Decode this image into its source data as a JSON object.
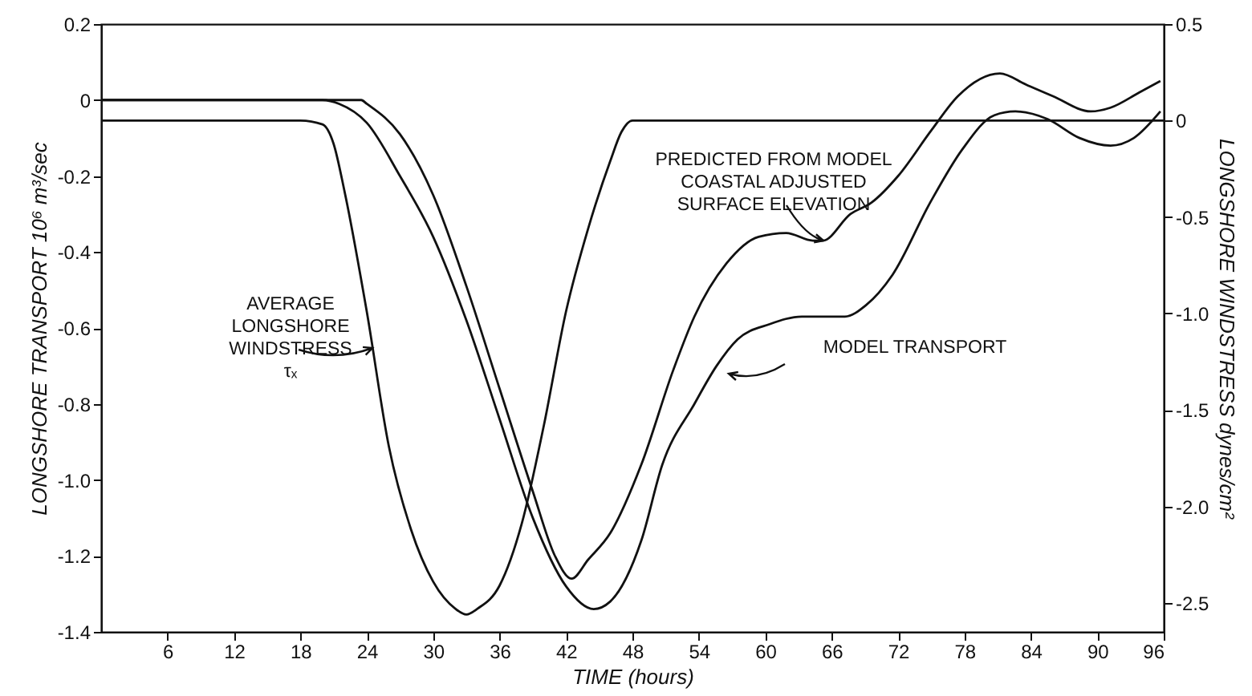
{
  "chart_data": {
    "type": "line",
    "xlabel": "TIME  (hours)",
    "ylabel": "LONGSHORE TRANSPORT  10⁶ m³/sec",
    "y2label": "LONGSHORE WINDSTRESS  dynes/cm²",
    "xlim": [
      0,
      96
    ],
    "xticks": [
      6,
      12,
      18,
      24,
      30,
      36,
      42,
      48,
      54,
      60,
      66,
      72,
      78,
      84,
      90,
      96
    ],
    "ylim": [
      -1.4,
      0.2
    ],
    "yticks": [
      0.2,
      0,
      -0.2,
      -0.4,
      -0.6,
      -0.8,
      {
        "value": -1,
        "label": "-1.0"
      },
      -1.2,
      -1.4
    ],
    "y2lim": [
      -2.65,
      0.5
    ],
    "y2ticks": [
      0.5,
      0,
      -0.5,
      {
        "value": -1,
        "label": "-1.0"
      },
      -1.5,
      {
        "value": -2,
        "label": "-2.0"
      },
      -2.5
    ],
    "grid": false,
    "marker": "none",
    "line_style": "solid",
    "series": [
      {
        "color": "#111111",
        "x": [
          0,
          18,
          20,
          21,
          22,
          24,
          26,
          28,
          30,
          32,
          33,
          34,
          36,
          38,
          40,
          42,
          44,
          46,
          47,
          48,
          96
        ],
        "values": [
          0,
          0,
          -0.02,
          -0.12,
          -0.37,
          -0.99,
          -1.69,
          -2.12,
          -2.39,
          -2.53,
          -2.56,
          -2.53,
          -2.41,
          -2.09,
          -1.58,
          -0.99,
          -0.56,
          -0.21,
          -0.06,
          0,
          0
        ],
        "axis": "y2"
      },
      {
        "color": "#111111",
        "x": [
          0,
          20,
          21.5,
          24,
          27,
          30,
          33,
          36,
          39,
          42,
          44.5,
          46,
          48.8,
          50.7,
          53.6,
          55.6,
          57.5,
          60.4,
          63.3,
          67.2,
          69.1,
          71.5,
          74.9,
          77.8,
          80.7,
          82.6,
          85.5,
          88.4,
          91.2,
          93.3,
          95.7
        ],
        "values": [
          0,
          0,
          -0.01,
          -0.06,
          -0.2,
          -0.36,
          -0.58,
          -0.84,
          -1.1,
          -1.28,
          -1.34,
          -1.32,
          -1.16,
          -0.96,
          -0.8,
          -0.7,
          -0.63,
          -0.59,
          -0.57,
          -0.57,
          -0.54,
          -0.46,
          -0.27,
          -0.13,
          -0.04,
          -0.03,
          -0.05,
          -0.1,
          -0.12,
          -0.1,
          -0.03
        ]
      },
      {
        "color": "#111111",
        "x": [
          0,
          23.5,
          24,
          27,
          30,
          33,
          36,
          39,
          41,
          42.5,
          44,
          46,
          48.8,
          51.7,
          53.6,
          56.5,
          59.4,
          61.9,
          64.3,
          65.2,
          67.7,
          69.6,
          72,
          75,
          77.4,
          81.2,
          83.6,
          86,
          89.4,
          91.2,
          93.8,
          95.7
        ],
        "values": [
          0,
          0,
          -0.01,
          -0.09,
          -0.25,
          -0.49,
          -0.76,
          -1.03,
          -1.2,
          -1.26,
          -1.21,
          -1.14,
          -0.96,
          -0.71,
          -0.57,
          -0.43,
          -0.36,
          -0.35,
          -0.37,
          -0.37,
          -0.3,
          -0.27,
          -0.2,
          -0.08,
          0.01,
          0.07,
          0.04,
          0.01,
          -0.03,
          -0.02,
          0.02,
          0.05
        ]
      }
    ],
    "annotations": [
      "AVERAGE\nLONGSHORE\nWINDSTRESS\nτₓ",
      "PREDICTED FROM MODEL\nCOASTAL ADJUSTED\nSURFACE ELEVATION",
      "MODEL TRANSPORT"
    ]
  }
}
